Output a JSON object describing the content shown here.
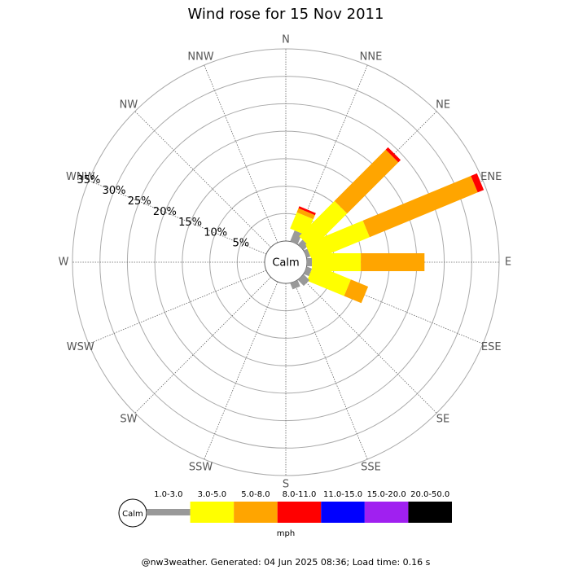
{
  "chart_data": {
    "type": "windrose",
    "title": "Wind rose for 15 Nov 2011",
    "categories": [
      "N",
      "NNE",
      "NE",
      "ENE",
      "E",
      "ESE",
      "SE",
      "SSE",
      "S",
      "SSW",
      "SW",
      "WSW",
      "W",
      "WNW",
      "NW",
      "NNW"
    ],
    "series": [
      {
        "name": "1.0-3.0",
        "color": "#999999",
        "values": [
          0,
          2.1,
          1.2,
          0.7,
          0.9,
          1.0,
          1.5,
          1.2,
          0,
          0,
          0,
          0,
          0,
          0,
          0,
          0
        ]
      },
      {
        "name": "3.0-5.0",
        "color": "#ffff00",
        "values": [
          0,
          3.2,
          9.1,
          11.3,
          8.9,
          7.3,
          0,
          0,
          0,
          0,
          0,
          0,
          0,
          0,
          0,
          0
        ]
      },
      {
        "name": "5.0-8.0",
        "color": "#ffa500",
        "values": [
          0,
          0.8,
          13.2,
          21.3,
          11.6,
          3.4,
          0,
          0,
          0,
          0,
          0,
          0,
          0,
          0,
          0,
          0
        ]
      },
      {
        "name": "8.0-11.0",
        "color": "#ff0000",
        "values": [
          0,
          0.4,
          0.6,
          1.2,
          0,
          0,
          0,
          0,
          0,
          0,
          0,
          0,
          0,
          0,
          0,
          0
        ]
      },
      {
        "name": "11.0-15.0",
        "color": "#0000ff",
        "values": [
          0,
          0,
          0,
          0,
          0,
          0,
          0,
          0,
          0,
          0,
          0,
          0,
          0,
          0,
          0,
          0
        ]
      },
      {
        "name": "15.0-20.0",
        "color": "#a020f0",
        "values": [
          0,
          0,
          0,
          0,
          0,
          0,
          0,
          0,
          0,
          0,
          0,
          0,
          0,
          0,
          0,
          0
        ]
      },
      {
        "name": "20.0-50.0",
        "color": "#000000",
        "values": [
          0,
          0,
          0,
          0,
          0,
          0,
          0,
          0,
          0,
          0,
          0,
          0,
          0,
          0,
          0,
          0
        ]
      }
    ],
    "rlim": [
      0,
      35
    ],
    "rticks": [
      {
        "value": 5,
        "label": "5%"
      },
      {
        "value": 10,
        "label": "10%"
      },
      {
        "value": 15,
        "label": "15%"
      },
      {
        "value": 20,
        "label": "20%"
      },
      {
        "value": 25,
        "label": "25%"
      },
      {
        "value": 30,
        "label": "30%"
      },
      {
        "value": 35,
        "label": "35%"
      }
    ],
    "calm_label": "Calm",
    "legend_unit": "mph",
    "footer": "@nw3weather. Generated: 04 Jun 2025 08:36; Load time: 0.16 s"
  }
}
